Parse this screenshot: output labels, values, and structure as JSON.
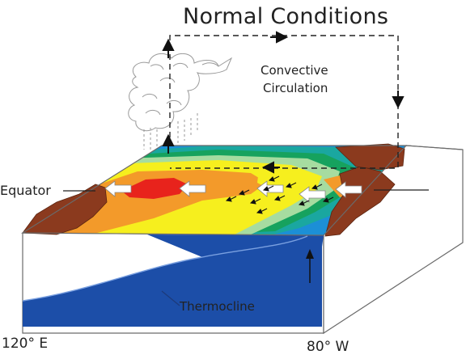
{
  "title": "Normal Conditions",
  "circulation_label": [
    "Convective",
    "Circulation"
  ],
  "equator_label": "Equator",
  "thermocline_label": "Thermocline",
  "longitude_left": "120° E",
  "longitude_right": "80° W",
  "colors": {
    "warm_pool": "#e8231c",
    "orange": "#f39a2a",
    "yellow": "#f6ef1e",
    "light_green": "#a6dca0",
    "green": "#16a25e",
    "teal": "#1aa7a0",
    "blue": "#1c8fd6",
    "land": "#8b3a1e",
    "deep_ocean": "#1c4ea8",
    "cloud_stroke": "#9a9a9a"
  }
}
